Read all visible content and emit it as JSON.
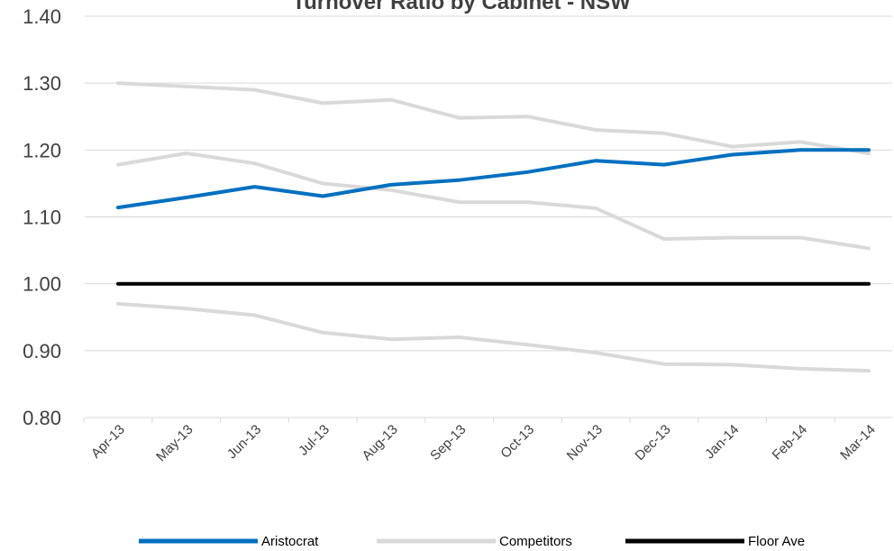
{
  "chart_data": {
    "type": "line",
    "title": "Turnover Ratio by Cabinet - NSW",
    "categories": [
      "Apr-13",
      "May-13",
      "Jun-13",
      "Jul-13",
      "Aug-13",
      "Sep-13",
      "Oct-13",
      "Nov-13",
      "Dec-13",
      "Jan-14",
      "Feb-14",
      "Mar-14"
    ],
    "ylim": [
      0.8,
      1.4
    ],
    "yticks": [
      "0.80",
      "0.90",
      "1.00",
      "1.10",
      "1.20",
      "1.30",
      "1.40"
    ],
    "grid": true,
    "legend_position": "bottom",
    "series": [
      {
        "name": "Competitors",
        "color": "#d9d9d9",
        "values": [
          1.3,
          1.295,
          1.29,
          1.27,
          1.275,
          1.248,
          1.25,
          1.23,
          1.225,
          1.205,
          1.212,
          1.195
        ]
      },
      {
        "name": "Competitors",
        "color": "#d9d9d9",
        "values": [
          1.178,
          1.195,
          1.18,
          1.15,
          1.14,
          1.122,
          1.122,
          1.113,
          1.067,
          1.069,
          1.069,
          1.053
        ]
      },
      {
        "name": "Competitors",
        "color": "#d9d9d9",
        "values": [
          0.97,
          0.963,
          0.953,
          0.927,
          0.917,
          0.92,
          0.909,
          0.897,
          0.88,
          0.879,
          0.873,
          0.87
        ]
      },
      {
        "name": "Floor Ave",
        "color": "#000000",
        "values": [
          1.0,
          1.0,
          1.0,
          1.0,
          1.0,
          1.0,
          1.0,
          1.0,
          1.0,
          1.0,
          1.0,
          1.0
        ]
      },
      {
        "name": "Aristocrat",
        "color": "#0070c0",
        "values": [
          1.114,
          1.129,
          1.145,
          1.131,
          1.148,
          1.155,
          1.167,
          1.184,
          1.178,
          1.193,
          1.2,
          1.2
        ]
      }
    ],
    "legend": [
      {
        "name": "Aristocrat",
        "color": "#0070c0"
      },
      {
        "name": "Competitors",
        "color": "#d9d9d9"
      },
      {
        "name": "Floor Ave",
        "color": "#000000"
      }
    ]
  }
}
